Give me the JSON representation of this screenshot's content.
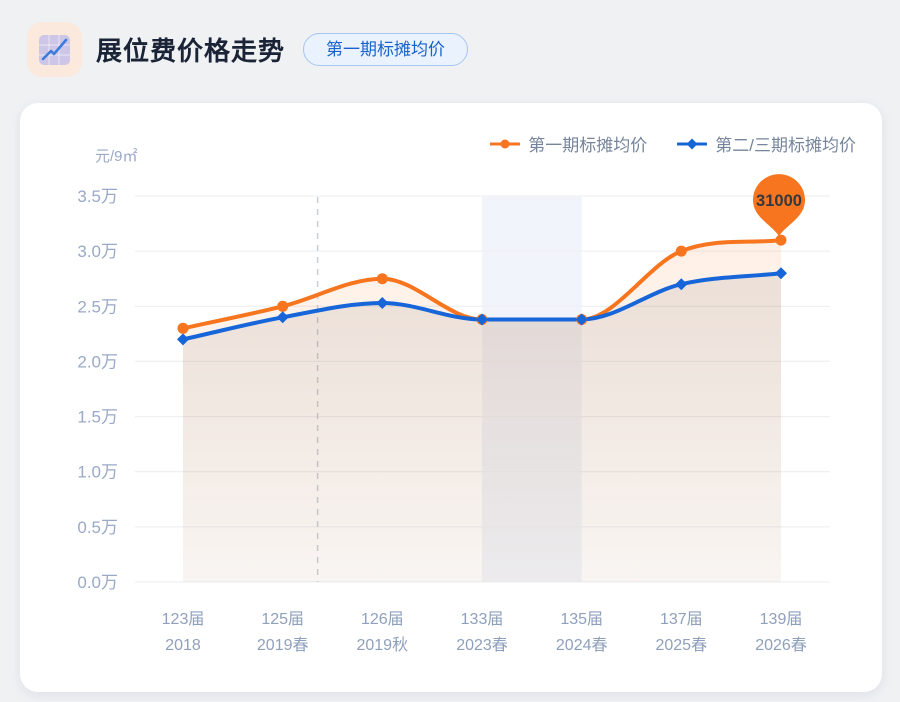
{
  "header": {
    "title": "展位费价格走势",
    "badge_label": "第一期标摊均价",
    "icon": "line-chart-icon"
  },
  "chart_data": {
    "type": "line",
    "title": "展位费价格走势",
    "unit_label": "元/9㎡",
    "categories": [
      [
        "123届",
        "2018"
      ],
      [
        "125届",
        "2019春"
      ],
      [
        "126届",
        "2019秋"
      ],
      [
        "133届",
        "2023春"
      ],
      [
        "135届",
        "2024春"
      ],
      [
        "137届",
        "2025春"
      ],
      [
        "139届",
        "2026春"
      ]
    ],
    "series": [
      {
        "name": "第一期标摊均价",
        "color": "#F7751E",
        "marker": "circle",
        "values": [
          23000,
          25000,
          27500,
          23800,
          23800,
          30000,
          31000
        ]
      },
      {
        "name": "第二/三期标摊均价",
        "color": "#1766D9",
        "marker": "diamond",
        "values": [
          22000,
          24000,
          25300,
          23800,
          23800,
          27000,
          28000
        ]
      }
    ],
    "ylim": [
      0,
      35000
    ],
    "ytick_step": 5000,
    "ytick_suffix": "万",
    "grid": true,
    "legend_position": "top-right",
    "annotation": {
      "text": "31000",
      "series_index": 0,
      "point_index": 6,
      "shape": "pin"
    },
    "dashed_vline_at": 1.35,
    "highlight_band": {
      "from_index": 3,
      "to_index": 4,
      "color": "#F1F4FA"
    }
  },
  "colors": {
    "page_bg": "#EFF1F3",
    "card_bg": "#FFFFFF",
    "title_text": "#1B2436",
    "axis_label": "#9AA9C7",
    "x_label": "#8FA0BC",
    "legend_text": "#76859C",
    "gridline": "#EFF0F3",
    "dashed_line": "#C9CFD8",
    "annotation_text": "#33383F",
    "badge_bg": "#E9F2FD",
    "badge_border": "#A5C6F1",
    "badge_text": "#1A63CE",
    "icon_bg": "#FAE9DC",
    "icon_tile": "#CDC6E6",
    "icon_line": "#3E7BDB"
  }
}
